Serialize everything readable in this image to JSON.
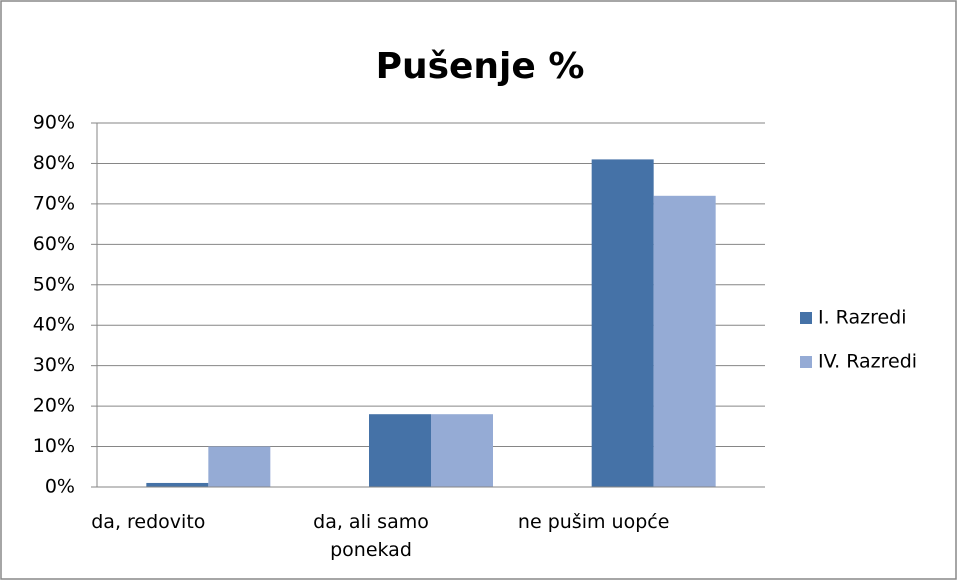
{
  "chart_data": {
    "type": "bar",
    "title": "Pušenje %",
    "categories": [
      "da, redovito",
      "da, ali samo ponekad",
      "ne pušim uopće"
    ],
    "series": [
      {
        "name": "I. Razredi",
        "color": "#4572a7",
        "values": [
          1,
          18,
          81
        ]
      },
      {
        "name": "IV. Razredi",
        "color": "#95abd5",
        "values": [
          10,
          18,
          72
        ]
      }
    ],
    "ylim": [
      0,
      90
    ],
    "yticks": [
      {
        "value": 0,
        "label": "0%"
      },
      {
        "value": 10,
        "label": "10%"
      },
      {
        "value": 20,
        "label": "20%"
      },
      {
        "value": 30,
        "label": "30%"
      },
      {
        "value": 40,
        "label": "40%"
      },
      {
        "value": 50,
        "label": "50%"
      },
      {
        "value": 60,
        "label": "60%"
      },
      {
        "value": 70,
        "label": "70%"
      },
      {
        "value": 80,
        "label": "80%"
      },
      {
        "value": 90,
        "label": "90%"
      }
    ],
    "grid": true,
    "legend": "right"
  }
}
